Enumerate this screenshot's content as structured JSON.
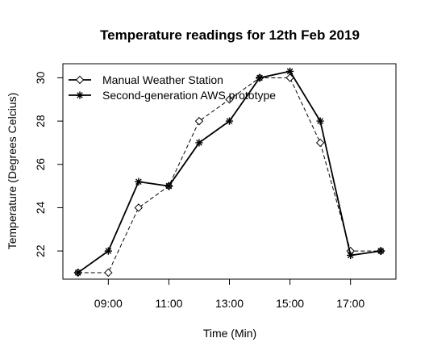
{
  "chart_data": {
    "type": "line",
    "title": "Temperature readings for 12th Feb 2019",
    "xlabel": "Time (Min)",
    "ylabel": "Temperature (Degrees Celcius)",
    "x": [
      8,
      9,
      10,
      11,
      12,
      13,
      14,
      15,
      16,
      17,
      18
    ],
    "xticks": [
      9,
      11,
      13,
      15,
      17
    ],
    "xtick_labels": [
      "09:00",
      "11:00",
      "13:00",
      "15:00",
      "17:00"
    ],
    "yticks": [
      22,
      24,
      26,
      28,
      30
    ],
    "yticks_labels": [
      "22",
      "24",
      "26",
      "28",
      "30"
    ],
    "xlim": [
      7.5,
      18.5
    ],
    "ylim": [
      20.7,
      30.65
    ],
    "legend_position": "top-left",
    "grid": false,
    "series": [
      {
        "name": "Manual Weather Station",
        "values": [
          21.0,
          21.0,
          24.0,
          25.0,
          28.0,
          29.0,
          30.0,
          30.0,
          27.0,
          22.0,
          22.0
        ],
        "marker": "diamond",
        "line_style": "dashed",
        "color": "#000000"
      },
      {
        "name": "Second-generation AWS prototype",
        "values": [
          21.0,
          22.0,
          25.2,
          25.0,
          27.0,
          28.0,
          30.0,
          30.3,
          28.0,
          21.8,
          22.0
        ],
        "marker": "asterisk",
        "line_style": "solid",
        "color": "#000000"
      }
    ]
  }
}
